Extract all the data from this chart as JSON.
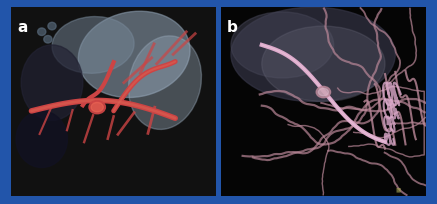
{
  "border_color": "#2255aa",
  "border_width": 4,
  "panel_a_label": "a",
  "panel_b_label": "b",
  "label_color": "#ffffff",
  "label_fontsize": 11,
  "background_color": "#000000",
  "fig_width": 4.37,
  "fig_height": 2.05,
  "dpi": 100,
  "panel_a": {
    "bg_color": "#1a1a1a",
    "bone_color": "#8899aa",
    "vessel_color": "#cc5555",
    "vessel_highlight": "#dd7766"
  },
  "panel_b": {
    "bg_color": "#0a0a0a",
    "tissue_color": "#555566",
    "vessel_color": "#cc9999",
    "vessel_highlight": "#ddaabb"
  }
}
